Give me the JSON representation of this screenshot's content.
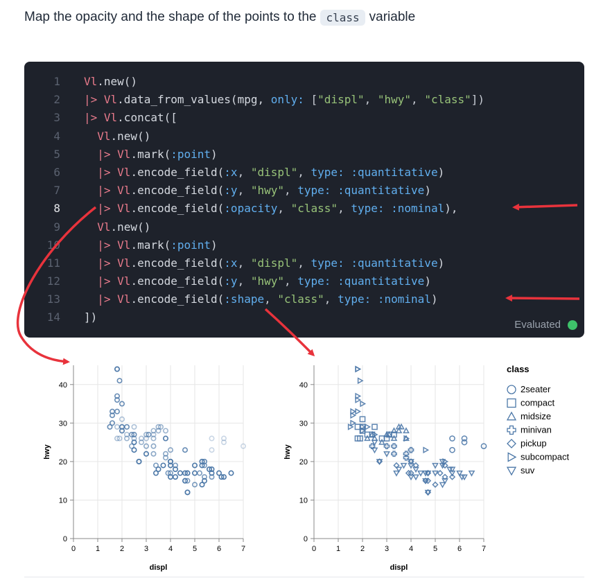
{
  "intro": {
    "before": "Map the opacity and the shape of the points to the",
    "code": "class",
    "after": "variable"
  },
  "code_cell": {
    "status": "Evaluated",
    "status_color": "#3ec16a",
    "active_line": 8,
    "lines": [
      {
        "n": "1",
        "indent": "",
        "tokens": [
          [
            "mod",
            "Vl"
          ],
          [
            "fn",
            ".new()"
          ]
        ]
      },
      {
        "n": "2",
        "indent": "",
        "tokens": [
          [
            "pipe",
            "|> "
          ],
          [
            "mod",
            "Vl"
          ],
          [
            "fn",
            ".data_from_values(mpg, "
          ],
          [
            "key",
            "only:"
          ],
          [
            "punc",
            " ["
          ],
          [
            "str",
            "\"displ\""
          ],
          [
            "punc",
            ", "
          ],
          [
            "str",
            "\"hwy\""
          ],
          [
            "punc",
            ", "
          ],
          [
            "str",
            "\"class\""
          ],
          [
            "punc",
            "])"
          ]
        ]
      },
      {
        "n": "3",
        "indent": "",
        "tokens": [
          [
            "pipe",
            "|> "
          ],
          [
            "mod",
            "Vl"
          ],
          [
            "fn",
            ".concat(["
          ]
        ]
      },
      {
        "n": "4",
        "indent": "  ",
        "tokens": [
          [
            "mod",
            "Vl"
          ],
          [
            "fn",
            ".new()"
          ]
        ]
      },
      {
        "n": "5",
        "indent": "  ",
        "tokens": [
          [
            "pipe",
            "|> "
          ],
          [
            "mod",
            "Vl"
          ],
          [
            "fn",
            ".mark("
          ],
          [
            "atom",
            ":point"
          ],
          [
            "fn",
            ")"
          ]
        ]
      },
      {
        "n": "6",
        "indent": "  ",
        "tokens": [
          [
            "pipe",
            "|> "
          ],
          [
            "mod",
            "Vl"
          ],
          [
            "fn",
            ".encode_field("
          ],
          [
            "atom",
            ":x"
          ],
          [
            "punc",
            ", "
          ],
          [
            "str",
            "\"displ\""
          ],
          [
            "punc",
            ", "
          ],
          [
            "key",
            "type:"
          ],
          [
            "punc",
            " "
          ],
          [
            "atom",
            ":quantitative"
          ],
          [
            "fn",
            ")"
          ]
        ]
      },
      {
        "n": "7",
        "indent": "  ",
        "tokens": [
          [
            "pipe",
            "|> "
          ],
          [
            "mod",
            "Vl"
          ],
          [
            "fn",
            ".encode_field("
          ],
          [
            "atom",
            ":y"
          ],
          [
            "punc",
            ", "
          ],
          [
            "str",
            "\"hwy\""
          ],
          [
            "punc",
            ", "
          ],
          [
            "key",
            "type:"
          ],
          [
            "punc",
            " "
          ],
          [
            "atom",
            ":quantitative"
          ],
          [
            "fn",
            ")"
          ]
        ]
      },
      {
        "n": "8",
        "indent": "  ",
        "tokens": [
          [
            "pipe",
            "|> "
          ],
          [
            "mod",
            "Vl"
          ],
          [
            "fn",
            ".encode_field("
          ],
          [
            "atom",
            ":opacity"
          ],
          [
            "punc",
            ", "
          ],
          [
            "str",
            "\"class\""
          ],
          [
            "punc",
            ", "
          ],
          [
            "key",
            "type:"
          ],
          [
            "punc",
            " "
          ],
          [
            "atom",
            ":nominal"
          ],
          [
            "fn",
            "),"
          ]
        ]
      },
      {
        "n": "9",
        "indent": "  ",
        "tokens": [
          [
            "mod",
            "Vl"
          ],
          [
            "fn",
            ".new()"
          ]
        ]
      },
      {
        "n": "10",
        "indent": "  ",
        "tokens": [
          [
            "pipe",
            "|> "
          ],
          [
            "mod",
            "Vl"
          ],
          [
            "fn",
            ".mark("
          ],
          [
            "atom",
            ":point"
          ],
          [
            "fn",
            ")"
          ]
        ]
      },
      {
        "n": "11",
        "indent": "  ",
        "tokens": [
          [
            "pipe",
            "|> "
          ],
          [
            "mod",
            "Vl"
          ],
          [
            "fn",
            ".encode_field("
          ],
          [
            "atom",
            ":x"
          ],
          [
            "punc",
            ", "
          ],
          [
            "str",
            "\"displ\""
          ],
          [
            "punc",
            ", "
          ],
          [
            "key",
            "type:"
          ],
          [
            "punc",
            " "
          ],
          [
            "atom",
            ":quantitative"
          ],
          [
            "fn",
            ")"
          ]
        ]
      },
      {
        "n": "12",
        "indent": "  ",
        "tokens": [
          [
            "pipe",
            "|> "
          ],
          [
            "mod",
            "Vl"
          ],
          [
            "fn",
            ".encode_field("
          ],
          [
            "atom",
            ":y"
          ],
          [
            "punc",
            ", "
          ],
          [
            "str",
            "\"hwy\""
          ],
          [
            "punc",
            ", "
          ],
          [
            "key",
            "type:"
          ],
          [
            "punc",
            " "
          ],
          [
            "atom",
            ":quantitative"
          ],
          [
            "fn",
            ")"
          ]
        ]
      },
      {
        "n": "13",
        "indent": "  ",
        "tokens": [
          [
            "pipe",
            "|> "
          ],
          [
            "mod",
            "Vl"
          ],
          [
            "fn",
            ".encode_field("
          ],
          [
            "atom",
            ":shape"
          ],
          [
            "punc",
            ", "
          ],
          [
            "str",
            "\"class\""
          ],
          [
            "punc",
            ", "
          ],
          [
            "key",
            "type:"
          ],
          [
            "punc",
            " "
          ],
          [
            "atom",
            ":nominal"
          ],
          [
            "fn",
            ")"
          ]
        ]
      },
      {
        "n": "14",
        "indent": "",
        "tokens": [
          [
            "fn",
            "])"
          ]
        ]
      }
    ]
  },
  "annotation_color": "#e8333c",
  "chart_data": [
    {
      "type": "scatter",
      "encoding": "opacity",
      "xlabel": "displ",
      "ylabel": "hwy",
      "xlim": [
        0,
        7
      ],
      "ylim": [
        0,
        45
      ],
      "x_ticks": [
        "0",
        "1",
        "2",
        "3",
        "4",
        "5",
        "6",
        "7"
      ],
      "y_ticks": [
        "0",
        "10",
        "20",
        "30",
        "40"
      ],
      "grid": true,
      "color": "#4c78a8",
      "series": [
        {
          "class": "2seater",
          "opacity": 0.3,
          "points": [
            [
              5.7,
              26
            ],
            [
              5.7,
              23
            ],
            [
              6.2,
              26
            ],
            [
              6.2,
              25
            ],
            [
              7.0,
              24
            ]
          ]
        },
        {
          "class": "compact",
          "opacity": 0.45,
          "points": [
            [
              1.8,
              29
            ],
            [
              2.0,
              31
            ],
            [
              2.0,
              29
            ],
            [
              2.8,
              26
            ],
            [
              3.1,
              27
            ],
            [
              1.8,
              26
            ],
            [
              2.0,
              28
            ],
            [
              2.4,
              27
            ],
            [
              2.2,
              27
            ],
            [
              3.0,
              26
            ],
            [
              3.3,
              27
            ],
            [
              2.5,
              29
            ],
            [
              1.9,
              26
            ]
          ]
        },
        {
          "class": "midsize",
          "opacity": 0.55,
          "points": [
            [
              2.4,
              27
            ],
            [
              3.1,
              27
            ],
            [
              3.5,
              28
            ],
            [
              3.6,
              29
            ],
            [
              2.5,
              26
            ],
            [
              3.3,
              26
            ],
            [
              3.8,
              26
            ],
            [
              3.0,
              27
            ],
            [
              2.8,
              25
            ],
            [
              3.5,
              29
            ],
            [
              3.8,
              28
            ],
            [
              3.3,
              28
            ],
            [
              2.2,
              26
            ]
          ]
        },
        {
          "class": "minivan",
          "opacity": 0.65,
          "points": [
            [
              2.4,
              24
            ],
            [
              3.0,
              24
            ],
            [
              3.3,
              22
            ],
            [
              3.8,
              22
            ],
            [
              4.0,
              23
            ],
            [
              3.3,
              24
            ],
            [
              3.8,
              21
            ]
          ]
        },
        {
          "class": "pickup",
          "opacity": 0.75,
          "points": [
            [
              3.9,
              17
            ],
            [
              4.7,
              17
            ],
            [
              5.2,
              17
            ],
            [
              5.7,
              16
            ],
            [
              4.0,
              17
            ],
            [
              4.7,
              15
            ],
            [
              2.7,
              20
            ],
            [
              3.4,
              19
            ],
            [
              4.0,
              20
            ],
            [
              4.6,
              15
            ],
            [
              5.4,
              16
            ],
            [
              4.7,
              12
            ],
            [
              4.2,
              19
            ],
            [
              5.0,
              14
            ],
            [
              5.4,
              19
            ]
          ]
        },
        {
          "class": "subcompact",
          "opacity": 0.85,
          "points": [
            [
              1.8,
              44
            ],
            [
              1.6,
              33
            ],
            [
              1.8,
              36
            ],
            [
              1.6,
              32
            ],
            [
              1.8,
              37
            ],
            [
              2.0,
              29
            ],
            [
              2.5,
              27
            ],
            [
              1.9,
              41
            ],
            [
              2.0,
              35
            ],
            [
              1.6,
              30
            ],
            [
              1.8,
              33
            ],
            [
              1.5,
              29
            ],
            [
              2.2,
              29
            ],
            [
              4.6,
              23
            ],
            [
              5.4,
              20
            ],
            [
              3.8,
              26
            ],
            [
              2.0,
              28
            ],
            [
              1.8,
              44
            ]
          ]
        },
        {
          "class": "suv",
          "opacity": 1.0,
          "points": [
            [
              5.3,
              20
            ],
            [
              5.7,
              17
            ],
            [
              6.5,
              17
            ],
            [
              5.3,
              19
            ],
            [
              4.2,
              18
            ],
            [
              4.7,
              17
            ],
            [
              4.0,
              19
            ],
            [
              4.6,
              17
            ],
            [
              5.4,
              15
            ],
            [
              2.5,
              25
            ],
            [
              2.7,
              20
            ],
            [
              3.0,
              22
            ],
            [
              3.7,
              19
            ],
            [
              4.0,
              16
            ],
            [
              4.7,
              12
            ],
            [
              4.0,
              20
            ],
            [
              4.4,
              17
            ],
            [
              5.0,
              17
            ],
            [
              5.6,
              18
            ],
            [
              6.1,
              16
            ],
            [
              3.4,
              17
            ],
            [
              4.6,
              15
            ],
            [
              5.0,
              19
            ],
            [
              2.5,
              23
            ],
            [
              4.2,
              16
            ],
            [
              5.3,
              14
            ],
            [
              6.0,
              17
            ],
            [
              3.5,
              18
            ],
            [
              6.2,
              16
            ],
            [
              5.7,
              18
            ]
          ]
        }
      ]
    },
    {
      "type": "scatter",
      "encoding": "shape",
      "xlabel": "displ",
      "ylabel": "hwy",
      "xlim": [
        0,
        7
      ],
      "ylim": [
        0,
        45
      ],
      "x_ticks": [
        "0",
        "1",
        "2",
        "3",
        "4",
        "5",
        "6",
        "7"
      ],
      "y_ticks": [
        "0",
        "10",
        "20",
        "30",
        "40"
      ],
      "grid": true,
      "color": "#4c78a8",
      "legend": {
        "title": "class",
        "placement": "right",
        "entries": [
          {
            "label": "2seater",
            "shape": "circle"
          },
          {
            "label": "compact",
            "shape": "square"
          },
          {
            "label": "midsize",
            "shape": "triangle-up"
          },
          {
            "label": "minivan",
            "shape": "cross"
          },
          {
            "label": "pickup",
            "shape": "diamond"
          },
          {
            "label": "subcompact",
            "shape": "triangle-right"
          },
          {
            "label": "suv",
            "shape": "triangle-down"
          }
        ]
      }
    }
  ]
}
